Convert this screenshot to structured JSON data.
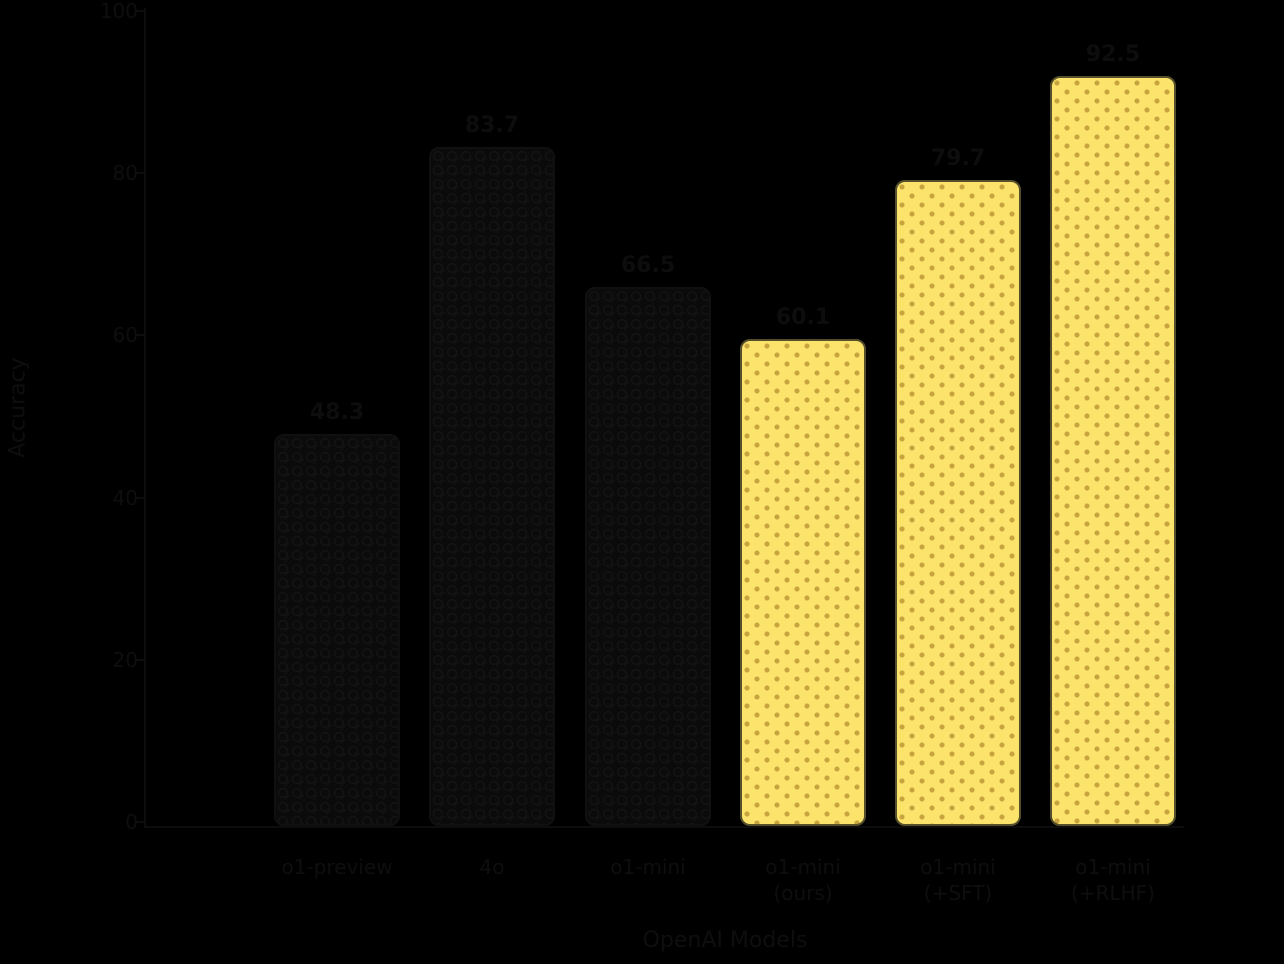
{
  "chart_data": {
    "type": "bar",
    "title": "",
    "xlabel": "OpenAI Models",
    "ylabel": "Accuracy",
    "ylim": [
      0,
      100
    ],
    "ytick_labels": [
      "0",
      "20",
      "40",
      "60",
      "80",
      "100"
    ],
    "ytick_values": [
      0,
      20,
      40,
      60,
      80,
      100
    ],
    "grid": false,
    "legend": null,
    "categories": [
      "o1-preview",
      "4o",
      "o1-mini",
      "o1-mini (ours)",
      "o1-mini (+SFT)",
      "o1-mini (+RLHF)"
    ],
    "values": [
      48.3,
      83.7,
      66.5,
      60.1,
      79.7,
      92.5
    ],
    "bars": [
      {
        "value": 48.3,
        "value_label": "48.3",
        "tick_line1": "o1-preview",
        "tick_line2": "",
        "variant": "dark",
        "hatch": "circle"
      },
      {
        "value": 83.7,
        "value_label": "83.7",
        "tick_line1": "4o",
        "tick_line2": "",
        "variant": "dark",
        "hatch": "circle"
      },
      {
        "value": 66.5,
        "value_label": "66.5",
        "tick_line1": "o1-mini",
        "tick_line2": "",
        "variant": "dark",
        "hatch": "circle"
      },
      {
        "value": 60.1,
        "value_label": "60.1",
        "tick_line1": "o1-mini",
        "tick_line2": "(ours)",
        "variant": "yellow",
        "hatch": "dot"
      },
      {
        "value": 79.7,
        "value_label": "79.7",
        "tick_line1": "o1-mini",
        "tick_line2": "(+SFT)",
        "variant": "yellow",
        "hatch": "dot"
      },
      {
        "value": 92.5,
        "value_label": "92.5",
        "tick_line1": "o1-mini",
        "tick_line2": "(+RLHF)",
        "variant": "yellow",
        "hatch": "dot"
      }
    ],
    "colors": {
      "background": "#000000",
      "dark_bar_fill": "#0b0b0b",
      "dark_bar_hatch": "#161616",
      "yellow_bar_fill": "#FCE46C",
      "yellow_bar_dot": "#C8A43E",
      "yellow_bar_edge": "#55502B",
      "text": "#0e0e0e"
    }
  }
}
